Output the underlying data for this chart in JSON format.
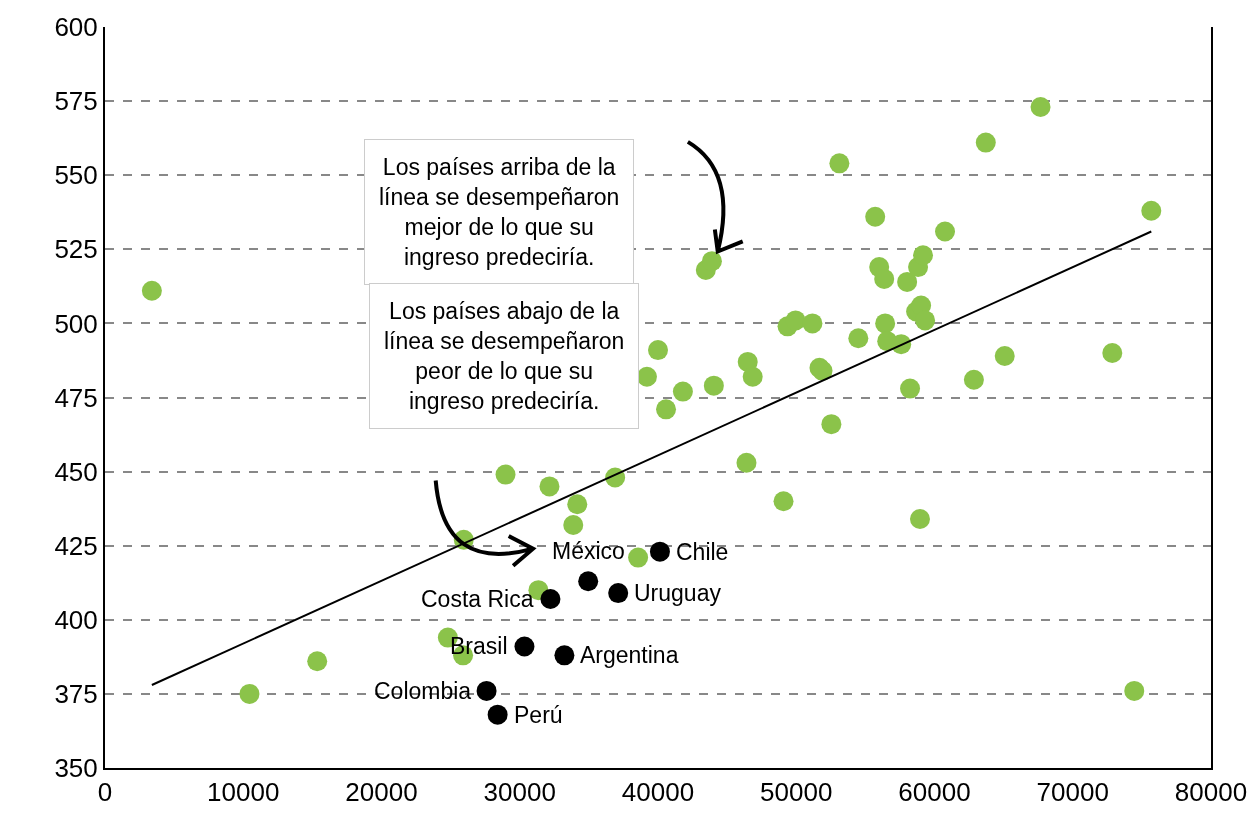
{
  "chart_data": {
    "type": "scatter",
    "xlim": [
      0,
      80000
    ],
    "xticks": [
      0,
      10000,
      20000,
      30000,
      40000,
      50000,
      60000,
      70000,
      80000
    ],
    "ylim": [
      350,
      600
    ],
    "yticks": [
      350,
      375,
      400,
      425,
      450,
      475,
      500,
      525,
      550,
      575,
      600
    ],
    "grid": "y",
    "marker": "circle",
    "series": [
      {
        "color": "#8bc34a",
        "x": [
          3390,
          10450,
          15350,
          24800,
          25900,
          25950,
          28970,
          32150,
          34160,
          33870,
          36900,
          31350,
          38560,
          39200,
          40000,
          40580,
          41800,
          43460,
          43900,
          44040,
          46490,
          46850,
          46400,
          49080,
          49370,
          49950,
          51170,
          51680,
          51900,
          52540,
          53120,
          54490,
          55710,
          56000,
          56360,
          56430,
          56580,
          57590,
          58020,
          58230,
          58810,
          58670,
          59030,
          59170,
          59320,
          58950,
          60760,
          62850,
          63710,
          65080,
          67670,
          72860,
          74450,
          75680
        ],
        "values": [
          511,
          375,
          386,
          394,
          388,
          427,
          449,
          445,
          439,
          432,
          448,
          410,
          421,
          482,
          491,
          471,
          477,
          518,
          521,
          479,
          487,
          482,
          453,
          440,
          499,
          501,
          500,
          485,
          484,
          466,
          554,
          495,
          536,
          519,
          515,
          500,
          494,
          493,
          514,
          478,
          519,
          504,
          506,
          523,
          501,
          434,
          531,
          481,
          561,
          489,
          573,
          490,
          376,
          538
        ]
      },
      {
        "color": "#000000",
        "x": [
          40140,
          34950,
          37120,
          32220,
          30340,
          33230,
          27600,
          28400
        ],
        "values": [
          423,
          413,
          409,
          407,
          391,
          388,
          376,
          368
        ]
      },
      {
        "type": "line",
        "color": "#000000",
        "marker": "none",
        "x": [
          3390,
          75680
        ],
        "values": [
          378,
          531
        ]
      }
    ],
    "annotations": [
      "Los países arriba de la\nlínea se desempeñaron\nmejor de lo que su\ningreso predeciría.",
      "Los países abajo de la\nlínea se desempeñaron\npeor de lo que su\ningreso predeciría.",
      {
        "text": "Chile",
        "x": 40140,
        "y": 423
      },
      {
        "text": "México",
        "x": 34950,
        "y": 413
      },
      {
        "text": "Uruguay",
        "x": 37120,
        "y": 409
      },
      {
        "text": "Costa Rica",
        "x": 32220,
        "y": 407
      },
      {
        "text": "Brasil",
        "x": 30340,
        "y": 391
      },
      {
        "text": "Argentina",
        "x": 33230,
        "y": 388
      },
      {
        "text": "Colombia",
        "x": 27600,
        "y": 376
      },
      {
        "text": "Perú",
        "x": 28400,
        "y": 368
      }
    ]
  }
}
